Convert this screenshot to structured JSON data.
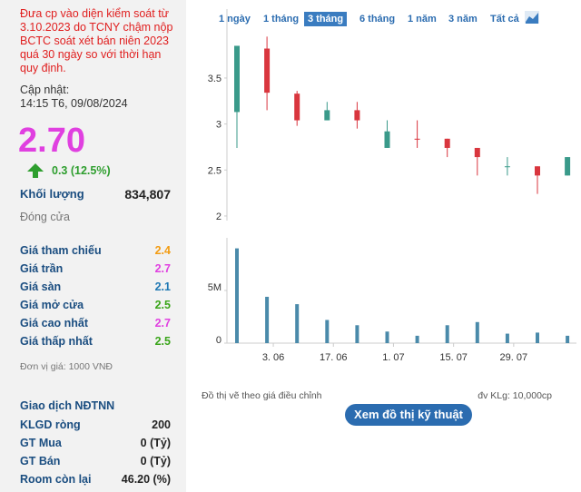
{
  "notice": "Đưa cp vào diện kiểm soát từ 3.10.2023 do TCNY chậm nộp BCTC soát xét bán niên 2023 quá 30 ngày so với thời hạn quy định.",
  "update_label": "Cập nhật:",
  "update_time": "14:15 T6, 09/08/2024",
  "price": "2.70",
  "change": "0.3 (12.5%)",
  "volume": {
    "label": "Khối lượng",
    "value": "834,807"
  },
  "status": "Đóng cửa",
  "price_rows": [
    {
      "label": "Giá tham chiếu",
      "value": "2.4",
      "color": "#f39c12"
    },
    {
      "label": "Giá trần",
      "value": "2.7",
      "color": "#e040e0"
    },
    {
      "label": "Giá sàn",
      "value": "2.1",
      "color": "#1f78b4"
    },
    {
      "label": "Giá mở cửa",
      "value": "2.5",
      "color": "#3aa51a"
    },
    {
      "label": "Giá cao nhất",
      "value": "2.7",
      "color": "#e040e0"
    },
    {
      "label": "Giá thấp nhất",
      "value": "2.5",
      "color": "#3aa51a"
    }
  ],
  "unit_note": "Đơn vị giá: 1000 VNĐ",
  "foreign": {
    "title": "Giao dịch NĐTNN",
    "rows": [
      {
        "label": "KLGD ròng",
        "value": "200"
      },
      {
        "label": "GT Mua",
        "value": "0 (Tỷ)"
      },
      {
        "label": "GT Bán",
        "value": "0 (Tỷ)"
      },
      {
        "label": "Room còn lại",
        "value": "46.20 (%)"
      }
    ]
  },
  "tabs": [
    "1 ngày",
    "1 tháng",
    "3 tháng",
    "6 tháng",
    "1 năm",
    "3 năm",
    "Tất cả"
  ],
  "active_tab": 2,
  "chart_data": {
    "type": "candlestick",
    "categories": [
      null,
      null,
      null,
      null,
      null,
      null,
      null,
      null,
      null,
      null,
      null,
      null
    ],
    "open": [
      3.13,
      3.82,
      3.33,
      3.04,
      3.15,
      2.74,
      2.84,
      2.84,
      2.74,
      2.54,
      2.54,
      2.44
    ],
    "high": [
      3.85,
      3.95,
      3.36,
      3.24,
      3.24,
      3.04,
      3.04,
      2.84,
      2.74,
      2.64,
      2.54,
      2.64
    ],
    "low": [
      2.74,
      3.15,
      2.98,
      3.04,
      2.95,
      2.74,
      2.74,
      2.64,
      2.44,
      2.44,
      2.24,
      2.44
    ],
    "close": [
      3.85,
      3.34,
      3.04,
      3.15,
      3.04,
      2.92,
      2.83,
      2.74,
      2.64,
      2.54,
      2.44,
      2.64
    ],
    "up_color": "#3a9a8a",
    "down_color": "#d9363e",
    "ylim": [
      1.95,
      4.2
    ],
    "yticks": [
      2,
      2.5,
      3,
      3.5
    ],
    "xticks": [
      {
        "value": 1.21,
        "label": "3. 06"
      },
      {
        "value": 3.21,
        "label": "17. 06"
      },
      {
        "value": 5.21,
        "label": "1. 07"
      },
      {
        "value": 7.21,
        "label": "15. 07"
      },
      {
        "value": 9.21,
        "label": "29. 07"
      }
    ],
    "volume": {
      "values": [
        9000000,
        4400000,
        3700000,
        2200000,
        1700000,
        1100000,
        700000,
        1700000,
        2000000,
        900000,
        1000000,
        700000
      ],
      "color": "#4a8aaa",
      "ylim": [
        0,
        10000000
      ],
      "yticks": [
        0,
        {
          "value": 5000000,
          "label": "5M"
        }
      ]
    }
  },
  "footnote_left": "Đồ thị vẽ theo giá điều chỉnh",
  "footnote_right": "đv KLg: 10,000cp",
  "button": "Xem đồ thị kỹ thuật"
}
